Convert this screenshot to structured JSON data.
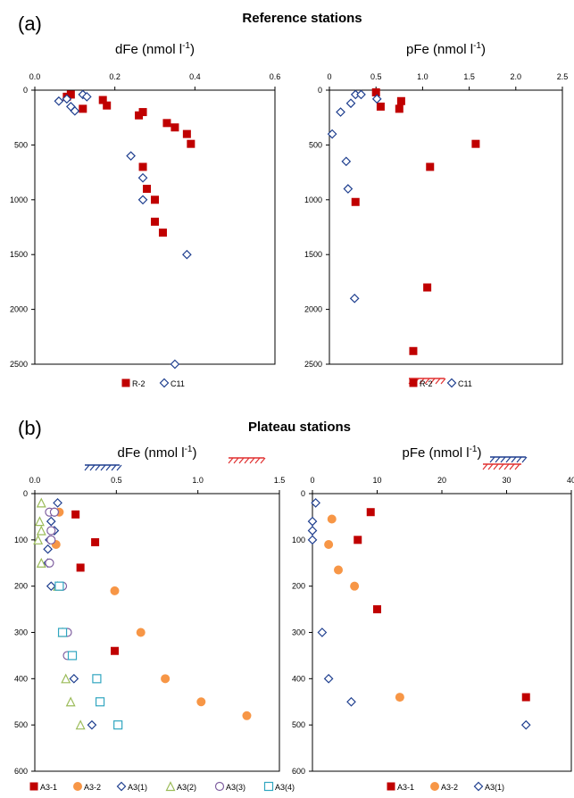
{
  "sections": {
    "a": {
      "label": "(a)",
      "title": "Reference stations"
    },
    "b": {
      "label": "(b)",
      "title": "Plateau stations"
    }
  },
  "colors": {
    "red": "#c00000",
    "orange": "#f79646",
    "blue": "#1f3f8f",
    "green": "#9bbb59",
    "purple": "#7f5fa0",
    "teal": "#31a6c0",
    "hatch_blue": "#1f3f8f",
    "hatch_red": "#e03030"
  },
  "chart_data": [
    {
      "id": "a-dfe",
      "type": "scatter",
      "title": "dFe (nmol l",
      "title_sup": "-1",
      "title_end": ")",
      "xlim": [
        0,
        0.6
      ],
      "xticks": [
        0,
        0.2,
        0.4,
        0.6
      ],
      "xtick_labels": [
        "0.0",
        "0.2",
        "0.4",
        "0.6"
      ],
      "ylim": [
        0,
        2500
      ],
      "yticks": [
        0,
        500,
        1000,
        1500,
        2000,
        2500
      ],
      "y_reversed": true,
      "series": [
        {
          "name": "R-2",
          "marker": "square-filled",
          "color": "#c00000",
          "points": [
            [
              0.08,
              60
            ],
            [
              0.09,
              40
            ],
            [
              0.12,
              170
            ],
            [
              0.17,
              90
            ],
            [
              0.18,
              140
            ],
            [
              0.26,
              230
            ],
            [
              0.27,
              200
            ],
            [
              0.33,
              300
            ],
            [
              0.35,
              340
            ],
            [
              0.38,
              400
            ],
            [
              0.39,
              490
            ],
            [
              0.27,
              700
            ],
            [
              0.28,
              900
            ],
            [
              0.3,
              1000
            ],
            [
              0.3,
              1200
            ],
            [
              0.32,
              1300
            ]
          ]
        },
        {
          "name": "C11",
          "marker": "diamond-open",
          "color": "#1f3f8f",
          "points": [
            [
              0.06,
              100
            ],
            [
              0.08,
              80
            ],
            [
              0.09,
              150
            ],
            [
              0.1,
              190
            ],
            [
              0.12,
              40
            ],
            [
              0.13,
              60
            ],
            [
              0.24,
              600
            ],
            [
              0.27,
              800
            ],
            [
              0.27,
              1000
            ],
            [
              0.38,
              1500
            ],
            [
              0.35,
              2500
            ]
          ]
        }
      ],
      "legend": [
        "R-2",
        "C11"
      ]
    },
    {
      "id": "a-pfe",
      "type": "scatter",
      "title": "pFe (nmol l",
      "title_sup": "-1",
      "title_end": ")",
      "xlim": [
        0,
        2.5
      ],
      "xticks": [
        0,
        0.5,
        1.0,
        1.5,
        2.0,
        2.5
      ],
      "xtick_labels": [
        "0",
        "0.5",
        "1.0",
        "1.5",
        "2.0",
        "2.5"
      ],
      "ylim": [
        0,
        2500
      ],
      "yticks": [
        0,
        500,
        1000,
        1500,
        2000,
        2500
      ],
      "y_reversed": true,
      "series": [
        {
          "name": "R-2",
          "marker": "square-filled",
          "color": "#c00000",
          "points": [
            [
              0.5,
              20
            ],
            [
              0.55,
              150
            ],
            [
              0.77,
              100
            ],
            [
              0.75,
              170
            ],
            [
              1.08,
              700
            ],
            [
              1.57,
              490
            ],
            [
              0.28,
              1020
            ],
            [
              1.05,
              1800
            ],
            [
              0.9,
              2380
            ]
          ]
        },
        {
          "name": "C11",
          "marker": "diamond-open",
          "color": "#1f3f8f",
          "points": [
            [
              0.28,
              40
            ],
            [
              0.34,
              40
            ],
            [
              0.23,
              120
            ],
            [
              0.12,
              200
            ],
            [
              0.51,
              80
            ],
            [
              0.03,
              400
            ],
            [
              0.18,
              650
            ],
            [
              0.2,
              900
            ],
            [
              0.27,
              1900
            ]
          ]
        }
      ],
      "legend": [
        "R-2",
        "C11"
      ]
    },
    {
      "id": "b-dfe",
      "type": "scatter",
      "title": "dFe (nmol l",
      "title_sup": "-1",
      "title_end": ")",
      "xlim": [
        0,
        1.5
      ],
      "xticks": [
        0,
        0.5,
        1.0,
        1.5
      ],
      "xtick_labels": [
        "0.0",
        "0.5",
        "1.0",
        "1.5"
      ],
      "ylim": [
        0,
        600
      ],
      "yticks": [
        0,
        100,
        200,
        300,
        400,
        500,
        600
      ],
      "y_reversed": true,
      "series": [
        {
          "name": "A3-1",
          "marker": "square-filled",
          "color": "#c00000",
          "points": [
            [
              0.25,
              45
            ],
            [
              0.37,
              105
            ],
            [
              0.28,
              160
            ],
            [
              0.49,
              340
            ]
          ]
        },
        {
          "name": "A3-2",
          "marker": "circle-filled",
          "color": "#f79646",
          "points": [
            [
              0.15,
              40
            ],
            [
              0.13,
              110
            ],
            [
              0.49,
              210
            ],
            [
              0.65,
              300
            ],
            [
              0.8,
              400
            ],
            [
              1.02,
              450
            ],
            [
              1.3,
              480
            ]
          ]
        },
        {
          "name": "A3(1)",
          "marker": "diamond-open",
          "color": "#1f3f8f",
          "points": [
            [
              0.14,
              20
            ],
            [
              0.12,
              40
            ],
            [
              0.1,
              60
            ],
            [
              0.09,
              100
            ],
            [
              0.12,
              80
            ],
            [
              0.08,
              120
            ],
            [
              0.08,
              150
            ],
            [
              0.1,
              200
            ],
            [
              0.24,
              400
            ],
            [
              0.35,
              500
            ]
          ]
        },
        {
          "name": "A3(2)",
          "marker": "triangle-open",
          "color": "#9bbb59",
          "points": [
            [
              0.04,
              20
            ],
            [
              0.03,
              60
            ],
            [
              0.04,
              80
            ],
            [
              0.02,
              100
            ],
            [
              0.04,
              150
            ],
            [
              0.14,
              200
            ],
            [
              0.17,
              300
            ],
            [
              0.19,
              400
            ],
            [
              0.22,
              450
            ],
            [
              0.28,
              500
            ]
          ]
        },
        {
          "name": "A3(3)",
          "marker": "circle-open",
          "color": "#7f5fa0",
          "points": [
            [
              0.09,
              40
            ],
            [
              0.12,
              40
            ],
            [
              0.1,
              80
            ],
            [
              0.09,
              150
            ],
            [
              0.1,
              100
            ],
            [
              0.17,
              200
            ],
            [
              0.2,
              300
            ],
            [
              0.2,
              350
            ]
          ]
        },
        {
          "name": "A3(4)",
          "marker": "square-open",
          "color": "#31a6c0",
          "points": [
            [
              0.15,
              200
            ],
            [
              0.17,
              300
            ],
            [
              0.23,
              350
            ],
            [
              0.38,
              400
            ],
            [
              0.4,
              450
            ],
            [
              0.51,
              500
            ]
          ]
        }
      ],
      "legend": [
        "A3-1",
        "A3-2",
        "A3(1)",
        "A3(2)",
        "A3(3)",
        "A3(4)"
      ]
    },
    {
      "id": "b-pfe",
      "type": "scatter",
      "title": "pFe (nmol l",
      "title_sup": "-1",
      "title_end": ")",
      "xlim": [
        0,
        40
      ],
      "xticks": [
        0,
        10,
        20,
        30,
        40
      ],
      "xtick_labels": [
        "0",
        "10",
        "20",
        "30",
        "40"
      ],
      "ylim": [
        0,
        600
      ],
      "yticks": [
        0,
        100,
        200,
        300,
        400,
        500,
        600
      ],
      "y_reversed": true,
      "series": [
        {
          "name": "A3-1",
          "marker": "square-filled",
          "color": "#c00000",
          "points": [
            [
              9,
              40
            ],
            [
              7,
              100
            ],
            [
              10,
              250
            ],
            [
              33,
              440
            ]
          ]
        },
        {
          "name": "A3-2",
          "marker": "circle-filled",
          "color": "#f79646",
          "points": [
            [
              3,
              55
            ],
            [
              2.5,
              110
            ],
            [
              4,
              165
            ],
            [
              6.5,
              200
            ],
            [
              13.5,
              440
            ]
          ]
        },
        {
          "name": "A3(1)",
          "marker": "diamond-open",
          "color": "#1f3f8f",
          "points": [
            [
              0.5,
              20
            ],
            [
              0,
              60
            ],
            [
              0,
              80
            ],
            [
              0,
              100
            ],
            [
              1.5,
              300
            ],
            [
              2.5,
              400
            ],
            [
              6,
              450
            ],
            [
              33,
              500
            ]
          ]
        }
      ],
      "legend": [
        "A3-1",
        "A3-2",
        "A3(1)"
      ]
    }
  ]
}
